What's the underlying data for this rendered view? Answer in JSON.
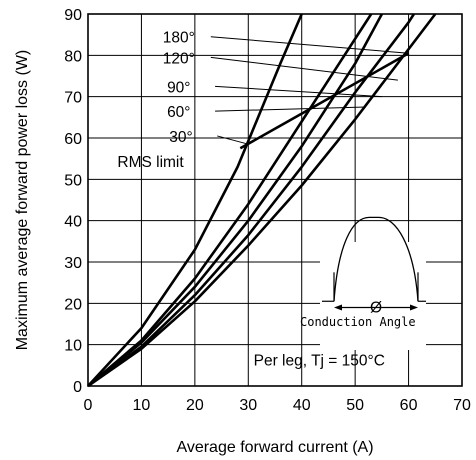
{
  "chart_data": {
    "type": "line",
    "title": "",
    "xlabel": "Average forward current (A)",
    "ylabel": "Maximum average forward power loss (W)",
    "xlim": [
      0,
      70
    ],
    "ylim": [
      0,
      90
    ],
    "x_ticks": [
      "0",
      "10",
      "20",
      "30",
      "40",
      "50",
      "60",
      "70"
    ],
    "y_ticks": [
      "0",
      "10",
      "20",
      "30",
      "40",
      "50",
      "60",
      "70",
      "80",
      "90"
    ],
    "grid": true,
    "series": [
      {
        "name": "30°",
        "points": [
          [
            0,
            0
          ],
          [
            10,
            9
          ],
          [
            20,
            20.5
          ],
          [
            30,
            34
          ],
          [
            40,
            48.5
          ],
          [
            50,
            64.5
          ],
          [
            60,
            81.5
          ],
          [
            65,
            90
          ]
        ]
      },
      {
        "name": "60°",
        "points": [
          [
            0,
            0
          ],
          [
            10,
            9.5
          ],
          [
            20,
            22
          ],
          [
            30,
            36.5
          ],
          [
            40,
            53
          ],
          [
            50,
            71
          ],
          [
            60,
            88
          ],
          [
            61,
            90
          ]
        ]
      },
      {
        "name": "90°",
        "points": [
          [
            0,
            0
          ],
          [
            10,
            10.5
          ],
          [
            20,
            24
          ],
          [
            30,
            40
          ],
          [
            40,
            58
          ],
          [
            50,
            78
          ],
          [
            55,
            90
          ]
        ]
      },
      {
        "name": "120°",
        "points": [
          [
            0,
            0
          ],
          [
            10,
            11
          ],
          [
            20,
            26
          ],
          [
            30,
            44
          ],
          [
            40,
            64
          ],
          [
            47,
            78
          ],
          [
            53,
            90
          ]
        ]
      },
      {
        "name": "180°",
        "points": [
          [
            0,
            0
          ],
          [
            10,
            14
          ],
          [
            20,
            33
          ],
          [
            28,
            53
          ],
          [
            36,
            78
          ],
          [
            40,
            90
          ]
        ]
      }
    ],
    "rms_limit": {
      "name": "RMS limit",
      "points": [
        [
          28.5,
          57.5
        ],
        [
          60,
          80.5
        ]
      ]
    },
    "annotations": {
      "rms_limit_label": "RMS limit",
      "condition": "Per leg, Tj = 150°C",
      "inset_symbol": "Ø",
      "inset_label": "Conduction Angle"
    }
  }
}
